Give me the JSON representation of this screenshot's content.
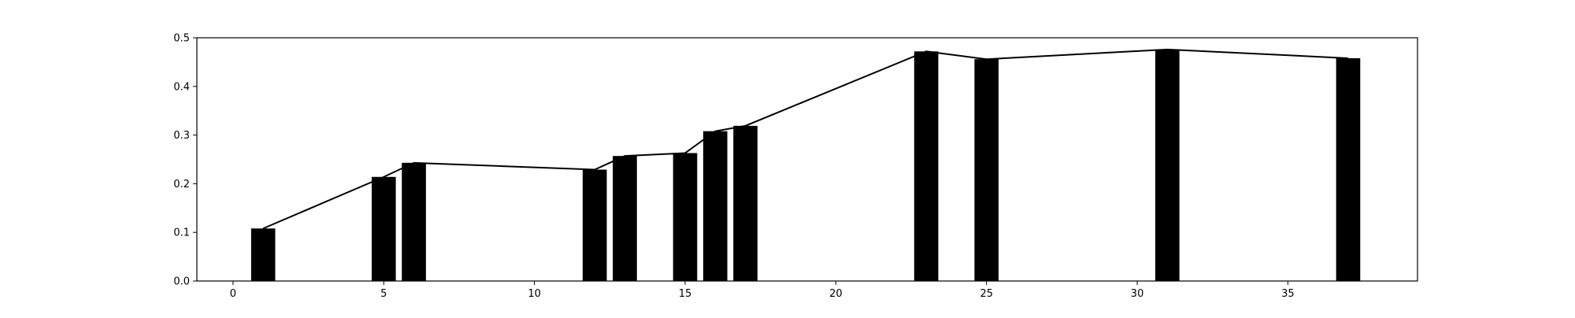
{
  "chart_data": {
    "type": "bar",
    "x": [
      1,
      5,
      6,
      12,
      13,
      15,
      16,
      17,
      23,
      25,
      31,
      37
    ],
    "values": [
      0.108,
      0.214,
      0.243,
      0.229,
      0.257,
      0.263,
      0.308,
      0.319,
      0.472,
      0.456,
      0.476,
      0.458
    ],
    "line_overlay": true,
    "bar_color": "#000000",
    "line_color": "#000000",
    "xlim": [
      -1.2,
      39.3
    ],
    "ylim": [
      0,
      0.5
    ],
    "xticks": [
      0,
      5,
      10,
      15,
      20,
      25,
      30,
      35
    ],
    "xtick_labels": [
      "0",
      "5",
      "10",
      "15",
      "20",
      "25",
      "30",
      "35"
    ],
    "yticks": [
      0.0,
      0.1,
      0.2,
      0.3,
      0.4,
      0.5
    ],
    "ytick_labels": [
      "0.0",
      "0.1",
      "0.2",
      "0.3",
      "0.4",
      "0.5"
    ],
    "grid": false,
    "title": "",
    "xlabel": "",
    "ylabel": ""
  }
}
